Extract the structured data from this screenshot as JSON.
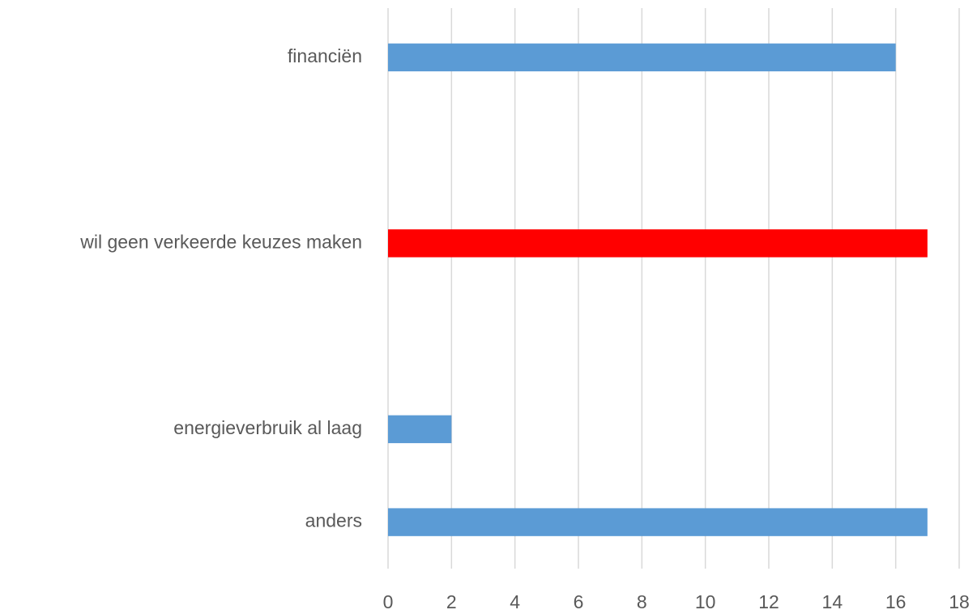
{
  "chart_data": {
    "type": "barh",
    "categories": [
      "financiën",
      null,
      "wil geen verkeerde keuzes maken",
      null,
      "energieverbruik al laag",
      "anders"
    ],
    "values": [
      16,
      null,
      17,
      null,
      2,
      17
    ],
    "colors": [
      "#5b9bd5",
      null,
      "#ff0000",
      null,
      "#5b9bd5",
      "#5b9bd5"
    ],
    "xlim": [
      0,
      18
    ],
    "xticks": [
      0,
      2,
      4,
      6,
      8,
      10,
      12,
      14,
      16,
      18
    ],
    "grid": true
  }
}
